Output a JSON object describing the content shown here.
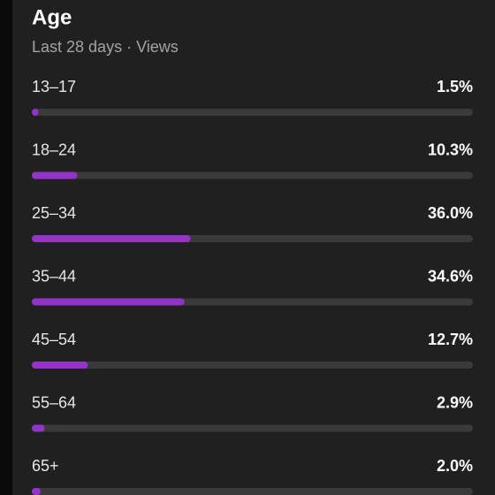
{
  "chart_data": {
    "type": "bar",
    "orientation": "horizontal",
    "title": "Age",
    "subtitle": "Last 28 days · Views",
    "categories": [
      "13–17",
      "18–24",
      "25–34",
      "35–44",
      "45–54",
      "55–64",
      "65+"
    ],
    "values": [
      1.5,
      10.3,
      36.0,
      34.6,
      12.7,
      2.9,
      2.0
    ],
    "value_labels": [
      "1.5%",
      "10.3%",
      "36.0%",
      "34.6%",
      "12.7%",
      "2.9%",
      "2.0%"
    ],
    "color": "#9333c9",
    "xlim": [
      0,
      100
    ]
  }
}
